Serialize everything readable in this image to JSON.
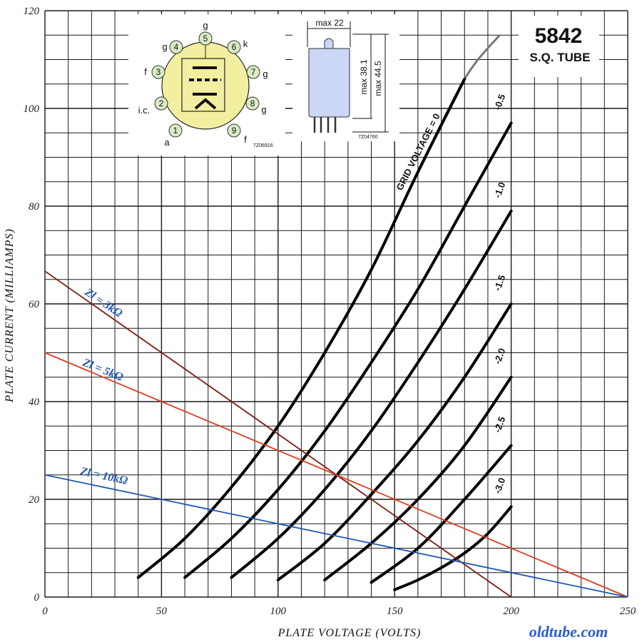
{
  "header": {
    "title": "5842",
    "subtitle": "S.Q. TUBE"
  },
  "source_mark": "oldtube.com",
  "pinout": {
    "code": "7Z06916",
    "pins": [
      {
        "number": "1",
        "label": "a"
      },
      {
        "number": "2",
        "label": "i.c."
      },
      {
        "number": "3",
        "label": "f"
      },
      {
        "number": "4",
        "label": "g"
      },
      {
        "number": "5",
        "label": "g"
      },
      {
        "number": "6",
        "label": "k"
      },
      {
        "number": "7",
        "label": "g"
      },
      {
        "number": "8",
        "label": "g"
      },
      {
        "number": "9",
        "label": "f"
      }
    ]
  },
  "outline": {
    "code": "7Z04760",
    "width_label": "max 22",
    "height_inner_label": "max 38.1",
    "height_outer_label": "max 44.5"
  },
  "colors": {
    "grid": "#1a1a1a",
    "curve": "#000000",
    "load_3k": "#7a1d12",
    "load_5k": "#e23b1e",
    "load_10k": "#1f55b5",
    "label_blue": "#1f55b5",
    "pinout_fill": "#f3efa0",
    "pin_fill": "#d8ecc4",
    "tube_fill": "#ccd6f5"
  },
  "chart_data": {
    "type": "line",
    "title": "5842 S.Q. TUBE",
    "xlabel": "PLATE VOLTAGE (VOLTS)",
    "ylabel": "PLATE CURRENT (MILLIAMPS)",
    "xlim": [
      0,
      250
    ],
    "ylim": [
      0,
      120
    ],
    "x_ticks": [
      0,
      50,
      100,
      150,
      200,
      250
    ],
    "y_ticks": [
      0,
      20,
      40,
      60,
      80,
      100,
      120
    ],
    "grid": true,
    "curve_family_label": "GRID VOLTAGE",
    "series": [
      {
        "name": "GRID VOLTAGE = 0",
        "label_text": "GRID VOLTAGE = 0",
        "x": [
          40,
          60,
          80,
          100,
          120,
          140,
          160,
          180,
          195
        ],
        "y": [
          4,
          12,
          22.5,
          35,
          50,
          67,
          87,
          106,
          115
        ]
      },
      {
        "name": "-0.5",
        "label_text": "-0.5",
        "x": [
          60,
          80,
          100,
          120,
          140,
          160,
          180,
          200
        ],
        "y": [
          4,
          12,
          22,
          34,
          48,
          63,
          80,
          97
        ]
      },
      {
        "name": "-1.0",
        "label_text": "-1.0",
        "x": [
          80,
          100,
          120,
          140,
          160,
          180,
          200
        ],
        "y": [
          4,
          12,
          22,
          34,
          48,
          63,
          79
        ]
      },
      {
        "name": "-1.5",
        "label_text": "-1.5",
        "x": [
          100,
          120,
          140,
          160,
          180,
          200
        ],
        "y": [
          3.5,
          11,
          21,
          32,
          45,
          60
        ]
      },
      {
        "name": "-2.0",
        "label_text": "-2.0",
        "x": [
          120,
          140,
          160,
          180,
          200
        ],
        "y": [
          3.5,
          11,
          20,
          31,
          45
        ]
      },
      {
        "name": "-2.5",
        "label_text": "-2.5",
        "x": [
          140,
          160,
          180,
          200
        ],
        "y": [
          3,
          10,
          20,
          31
        ]
      },
      {
        "name": "-3.0",
        "label_text": "-3.0",
        "x": [
          150,
          160,
          170,
          180,
          190,
          200
        ],
        "y": [
          1.5,
          3.5,
          6,
          9,
          13,
          18.5
        ]
      }
    ],
    "load_lines": [
      {
        "name": "Zl = 3kΩ",
        "label_text": "Zl = 3kΩ",
        "color": "#7a1d12",
        "x": [
          0,
          200
        ],
        "y": [
          66.7,
          0
        ]
      },
      {
        "name": "Zl = 5kΩ",
        "label_text": "Zl = 5kΩ",
        "color": "#e23b1e",
        "x": [
          0,
          250
        ],
        "y": [
          50,
          0
        ]
      },
      {
        "name": "Zl = 10kΩ",
        "label_text": "Zl = 10kΩ",
        "color": "#1f55b5",
        "x": [
          0,
          250
        ],
        "y": [
          25,
          0
        ]
      }
    ]
  }
}
